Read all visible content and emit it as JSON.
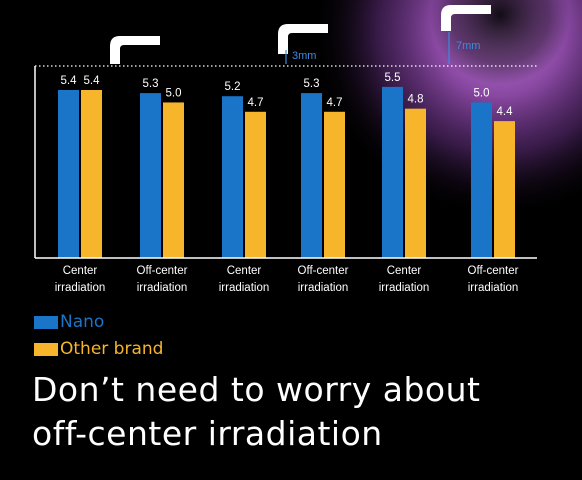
{
  "chart_data": {
    "type": "bar",
    "categories": [
      [
        "Center",
        "irradiation"
      ],
      [
        "Off-center",
        "irradiation"
      ],
      [
        "Center",
        "irradiation"
      ],
      [
        "Off-center",
        "irradiation"
      ],
      [
        "Center",
        "irradiation"
      ],
      [
        "Off-center",
        "irradiation"
      ]
    ],
    "series": [
      {
        "name": "Nano",
        "color": "#1a74c8",
        "values": [
          5.4,
          5.3,
          5.2,
          5.3,
          5.5,
          5.0
        ]
      },
      {
        "name": "Other brand",
        "color": "#f7b52b",
        "values": [
          5.4,
          5.0,
          4.7,
          4.7,
          4.8,
          4.4
        ]
      }
    ],
    "distance_labels": [
      "3mm",
      "7mm"
    ],
    "ylim": [
      0,
      5.7
    ],
    "grid": false,
    "legend_position": "bottom-left"
  },
  "headline": {
    "line1": "Don’t need to worry about",
    "line2": "off-center irradiation"
  },
  "colors": {
    "background": "#000000",
    "axis": "#ffffff",
    "distance_label": "#3d8ae0"
  }
}
